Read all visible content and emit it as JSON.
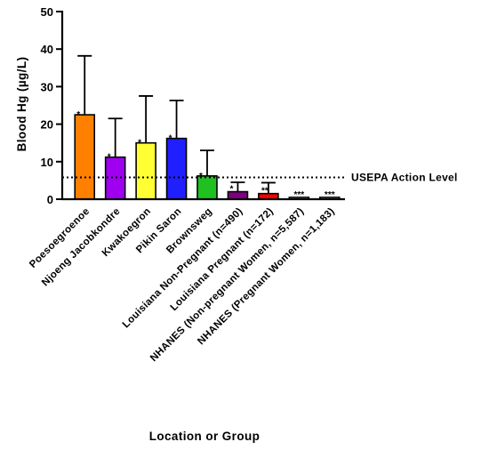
{
  "chart_data": {
    "type": "bar",
    "title": "",
    "xlabel": "Location or Group",
    "ylabel": "Blood Hg (µg/L)",
    "ylim": [
      0,
      50
    ],
    "yticks": [
      0,
      10,
      20,
      30,
      40,
      50
    ],
    "grid": false,
    "error_bars": true,
    "categories": [
      "Poesoegroenoe",
      "Njoeng Jacobkondre",
      "Kwakoegron",
      "Pikin Saron",
      "Brownsweg",
      "Louisiana Non-Pregnant (n=490)",
      "Louisiana Pregnant (n=172)",
      "NHANES (Non-pregnant Women, n=5,587)",
      "NHANES (Pregnant Women, n=1,183)"
    ],
    "values": [
      22.5,
      11.2,
      15.0,
      16.2,
      6.2,
      2.0,
      1.5,
      0.5,
      0.5
    ],
    "error_upper": [
      38.2,
      21.5,
      27.5,
      26.3,
      13.0,
      4.5,
      4.4,
      null,
      null
    ],
    "bar_colors": [
      "#FF8000",
      "#A000F0",
      "#FFFF33",
      "#2020FF",
      "#20C020",
      "#800080",
      "#FF0000",
      "#FFFFFF",
      "#FFFFFF"
    ],
    "significance": [
      "*",
      "*",
      "*",
      "*",
      "*",
      "*",
      "**",
      "***",
      "***"
    ],
    "reference_line": {
      "label": "USEPA Action Level",
      "value": 5.8,
      "style": "dotted"
    }
  }
}
